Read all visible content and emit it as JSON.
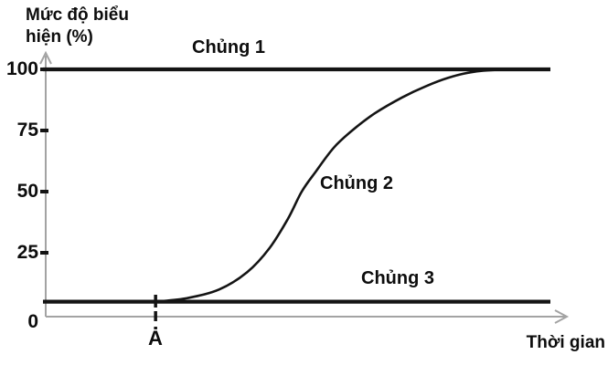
{
  "chart_data": {
    "type": "line",
    "title": "",
    "xlabel": "Thời gian",
    "ylabel": "Mức độ biểu hiện (%)",
    "ylim": [
      0,
      100
    ],
    "yticks": [
      0,
      25,
      50,
      75,
      100
    ],
    "x_axis_numeric_labels": false,
    "grid": false,
    "legend_position": "inline-labels",
    "line_color": "#141414",
    "axis_color": "#a3a3a3",
    "annotations": [
      {
        "label": "A",
        "t": 20.9,
        "note": "time point where Chủng 2 expression starts rising"
      }
    ],
    "series": [
      {
        "name": "Chủng 1",
        "shape": "constant",
        "value": 100,
        "t_start": 0,
        "t_end": 96
      },
      {
        "name": "Chủng 2",
        "shape": "sigmoid",
        "points": [
          {
            "t": 20.9,
            "value": 5
          },
          {
            "t": 27.0,
            "value": 6.5
          },
          {
            "t": 33.0,
            "value": 10
          },
          {
            "t": 38.3,
            "value": 17
          },
          {
            "t": 42.6,
            "value": 27
          },
          {
            "t": 46.1,
            "value": 39
          },
          {
            "t": 48.7,
            "value": 50
          },
          {
            "t": 51.3,
            "value": 58
          },
          {
            "t": 54.8,
            "value": 68
          },
          {
            "t": 58.3,
            "value": 75
          },
          {
            "t": 62.6,
            "value": 82
          },
          {
            "t": 67.8,
            "value": 88.5
          },
          {
            "t": 72.2,
            "value": 93
          },
          {
            "t": 76.5,
            "value": 96.5
          },
          {
            "t": 80.9,
            "value": 98.8
          },
          {
            "t": 86.1,
            "value": 99.8
          },
          {
            "t": 95.7,
            "value": 100
          }
        ]
      },
      {
        "name": "Chủng 3",
        "shape": "constant",
        "value": 5,
        "t_start": 0,
        "t_end": 96
      }
    ]
  }
}
